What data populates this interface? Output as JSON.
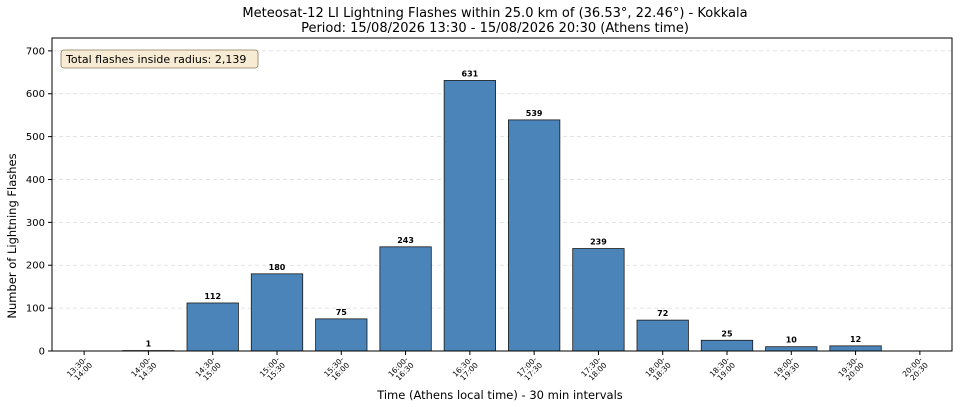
{
  "chart_data": {
    "type": "bar",
    "title": "Meteosat-12 LI Lightning Flashes within 25.0 km of (36.53°, 22.46°) - Kokkala",
    "subtitle": "Period: 15/08/2026 13:30 - 15/08/2026 20:30 (Athens time)",
    "xlabel": "Time (Athens local time) - 30 min intervals",
    "ylabel": "Number of Lightning Flashes",
    "ylim": [
      0,
      730
    ],
    "yticks": [
      0,
      100,
      200,
      300,
      400,
      500,
      600,
      700
    ],
    "grid": true,
    "categories": [
      [
        "13:30-",
        "14:00"
      ],
      [
        "14:00-",
        "14:30"
      ],
      [
        "14:30-",
        "15:00"
      ],
      [
        "15:00-",
        "15:30"
      ],
      [
        "15:30-",
        "16:00"
      ],
      [
        "16:00-",
        "16:30"
      ],
      [
        "16:30-",
        "17:00"
      ],
      [
        "17:00-",
        "17:30"
      ],
      [
        "17:30-",
        "18:00"
      ],
      [
        "18:00-",
        "18:30"
      ],
      [
        "18:30-",
        "19:00"
      ],
      [
        "19:00-",
        "19:30"
      ],
      [
        "19:30-",
        "20:00"
      ],
      [
        "20:00-",
        "20:30"
      ]
    ],
    "values": [
      0,
      1,
      112,
      180,
      75,
      243,
      631,
      539,
      239,
      72,
      25,
      10,
      12,
      0
    ],
    "annotation": "Total flashes inside radius: 2,139",
    "bar_color": "#4a84b8"
  }
}
